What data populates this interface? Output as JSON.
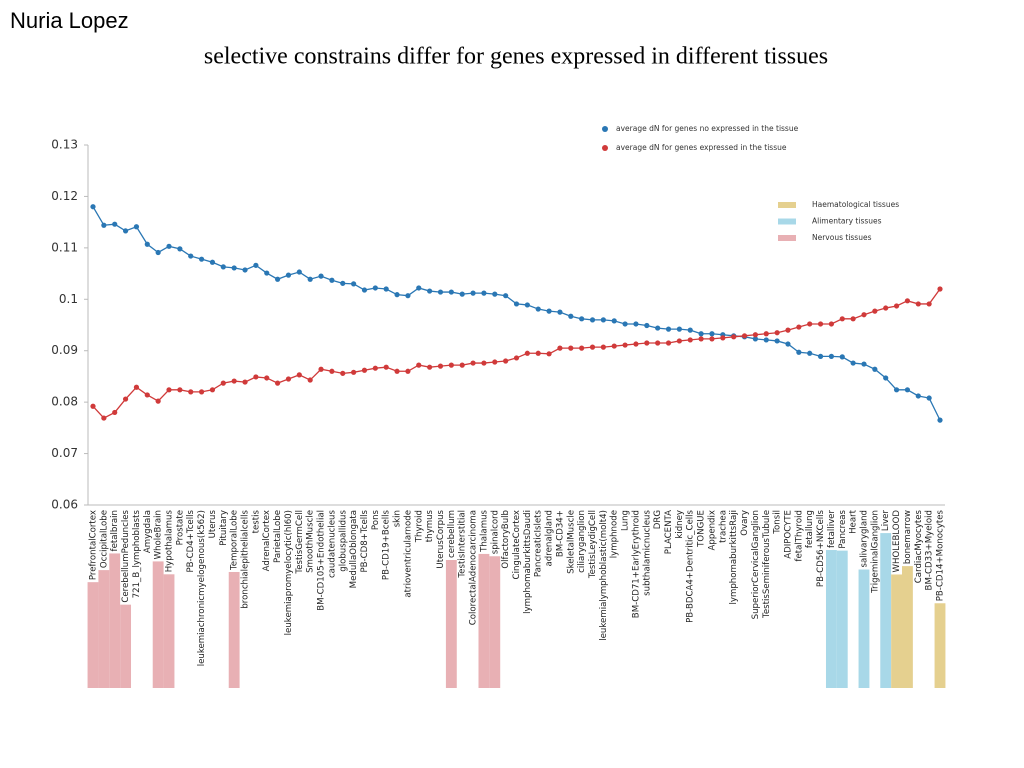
{
  "chart_data": {
    "type": "line",
    "author": "Nuria Lopez",
    "title": "selective constrains differ for genes expressed in different tissues",
    "categories": [
      "PrefrontalCortex",
      "OccipitalLobe",
      "fetalbrain",
      "CerebellumPeduncles",
      "721_B_lymphoblasts",
      "Amygdala",
      "WholeBrain",
      "Hypothalamus",
      "Prostate",
      "PB-CD4+Tcells",
      "leukemiachronicmyelogenous(k562)",
      "Uterus",
      "Pituitary",
      "TemporalLobe",
      "bronchialepithelialcells",
      "testis",
      "AdrenalCortex",
      "ParietalLobe",
      "leukemiapromyelocytic(hl60)",
      "TestisGermCell",
      "SmoothMuscle",
      "BM-CD105+Endothelial",
      "caudatenucleus",
      "globuspallidus",
      "MedullaOblongata",
      "PB-CD8+Tcells",
      "Pons",
      "PB-CD19+Bcells",
      "skin",
      "atrioventricularnode",
      "Thyroid",
      "thymus",
      "UterusCorpus",
      "cerebellum",
      "TestisInterstitial",
      "ColorectalAdenocarcinoma",
      "Thalamus",
      "spinalcord",
      "OlfactoryBulb",
      "CingulateCortex",
      "lymphomaburkittsDaudi",
      "PancreaticIslets",
      "adrenalgland",
      "BM-CD34+",
      "SkeletalMuscle",
      "ciliaryganglion",
      "TestisLeydigCell",
      "leukemialymphoblastic(molt4)",
      "lymphnode",
      "Lung",
      "BM-CD71+EarlyErythroid",
      "subthalamicnucleus",
      "DRG",
      "PLACENTA",
      "kidney",
      "PB-BDCA4+Dentritic_Cells",
      "TONGUE",
      "Appendix",
      "trachea",
      "lymphomaburkittsRaji",
      "Ovary",
      "SuperiorCervicalGanglion",
      "TestisSeminiferousTubule",
      "Tonsil",
      "ADIPOCYTE",
      "fetalThyroid",
      "fetallung",
      "PB-CD56+NKCells",
      "fetalliver",
      "Pancreas",
      "Heart",
      "salivarygland",
      "TrigeminalGanglion",
      "Liver",
      "WHOLEBLOOD",
      "bonemarrow",
      "CardiacMyocytes",
      "BM-CD33+Myeloid",
      "PB-CD14+Monocytes"
    ],
    "series": [
      {
        "name": "average dN for genes no expressed in the tissue",
        "color": "#2a77b4",
        "values": [
          0.118,
          0.1144,
          0.1146,
          0.1133,
          0.1141,
          0.1107,
          0.1091,
          0.1103,
          0.1098,
          0.1084,
          0.1078,
          0.1072,
          0.1063,
          0.1061,
          0.1057,
          0.1066,
          0.1051,
          0.1039,
          0.1047,
          0.1053,
          0.1039,
          0.1045,
          0.1037,
          0.1031,
          0.103,
          0.1018,
          0.1022,
          0.102,
          0.1009,
          0.1007,
          0.1022,
          0.1016,
          0.1014,
          0.1014,
          0.101,
          0.1012,
          0.1012,
          0.101,
          0.1007,
          0.0991,
          0.0989,
          0.0981,
          0.0977,
          0.0975,
          0.0967,
          0.0962,
          0.096,
          0.096,
          0.0958,
          0.0952,
          0.0952,
          0.0949,
          0.0944,
          0.0942,
          0.0942,
          0.094,
          0.0933,
          0.0933,
          0.0931,
          0.0929,
          0.0927,
          0.0923,
          0.0921,
          0.0919,
          0.0913,
          0.0897,
          0.0895,
          0.0889,
          0.0889,
          0.0888,
          0.0876,
          0.0874,
          0.0864,
          0.0847,
          0.0824,
          0.0824,
          0.0812,
          0.0808,
          0.0765
        ]
      },
      {
        "name": "average dN for genes expressed in the tissue",
        "color": "#d03a3a",
        "values": [
          0.0792,
          0.0769,
          0.078,
          0.0806,
          0.0829,
          0.0814,
          0.0802,
          0.0824,
          0.0824,
          0.082,
          0.082,
          0.0824,
          0.0837,
          0.0841,
          0.0839,
          0.0849,
          0.0847,
          0.0837,
          0.0845,
          0.0853,
          0.0843,
          0.0864,
          0.086,
          0.0856,
          0.0858,
          0.0862,
          0.0866,
          0.0868,
          0.086,
          0.086,
          0.0872,
          0.0868,
          0.087,
          0.0872,
          0.0872,
          0.0876,
          0.0876,
          0.0878,
          0.088,
          0.0886,
          0.0895,
          0.0895,
          0.0894,
          0.0905,
          0.0905,
          0.0905,
          0.0907,
          0.0907,
          0.0909,
          0.0911,
          0.0913,
          0.0915,
          0.0915,
          0.0915,
          0.0919,
          0.0921,
          0.0923,
          0.0923,
          0.0925,
          0.0927,
          0.0929,
          0.0931,
          0.0933,
          0.0935,
          0.094,
          0.0946,
          0.0952,
          0.0952,
          0.0952,
          0.0962,
          0.0962,
          0.097,
          0.0977,
          0.0983,
          0.0987,
          0.0997,
          0.0991,
          0.0991,
          0.102
        ]
      }
    ],
    "bands": [
      {
        "name": "Haematological tissues",
        "color": "#e5d08f",
        "members": [
          "WHOLEBLOOD",
          "bonemarrow",
          "PB-CD14+Monocytes"
        ]
      },
      {
        "name": "Alimentary tissues",
        "color": "#a8d8e8",
        "members": [
          "fetalliver",
          "Pancreas",
          "salivarygland",
          "Liver"
        ]
      },
      {
        "name": "Nervous tissues",
        "color": "#e8b0b4",
        "members": [
          "PrefrontalCortex",
          "OccipitalLobe",
          "fetalbrain",
          "CerebellumPeduncles",
          "WholeBrain",
          "Hypothalamus",
          "TemporalLobe",
          "cerebellum",
          "Thalamus",
          "spinalcord"
        ]
      }
    ],
    "ylim": [
      0.06,
      0.13
    ],
    "yticks": [
      0.06,
      0.07,
      0.08,
      0.09,
      0.1,
      0.11,
      0.12,
      0.13
    ]
  }
}
